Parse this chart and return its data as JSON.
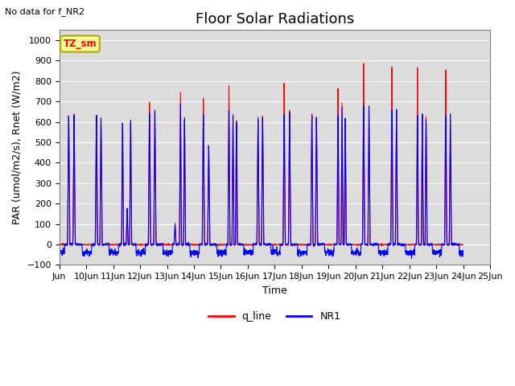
{
  "title": "Floor Solar Radiations",
  "xlabel": "Time",
  "ylabel": "PAR (umol/m2/s), Rnet (W/m2)",
  "annotation_text": "No data for f_NR2",
  "legend_label1": "q_line",
  "legend_label2": "NR1",
  "box_label": "TZ_sm",
  "ylim": [
    -100,
    1050
  ],
  "xlim": [
    9,
    25
  ],
  "color_red": "#FF0000",
  "color_blue": "#0000FF",
  "bg_color": "#DCDCDC",
  "grid_color": "#FFFFFF",
  "title_fontsize": 13,
  "label_fontsize": 9,
  "tick_fontsize": 8,
  "legend_fontsize": 9
}
